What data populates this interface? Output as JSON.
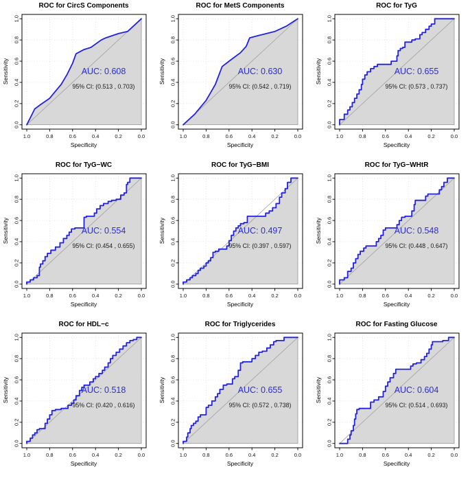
{
  "figure": {
    "type": "roc-curve-grid",
    "rows": 3,
    "cols": 3
  },
  "theme": {
    "curve_color": "#2222dd",
    "auc_text_color": "#2a2ae0",
    "ci_text_color": "#1a1a1a",
    "fill_color": "#d8d8d8",
    "fill_edge_color": "#8c8c8c",
    "diagonal_color": "#a6a6a6",
    "grid_color": "#e6d8d8",
    "box_color": "#000000",
    "text_color": "#111111",
    "background": "#ffffff"
  },
  "axes": {
    "xlabel": "Specificity",
    "ylabel": "Sensitivity",
    "x_ticks": [
      "1.0",
      "0.8",
      "0.6",
      "0.4",
      "0.2",
      "0.0"
    ],
    "y_ticks": [
      "0.0",
      "0.2",
      "0.4",
      "0.6",
      "0.8",
      "1.0"
    ],
    "x_reversed": true,
    "xlim": [
      1.0,
      0.0
    ],
    "ylim": [
      0.0,
      1.0
    ],
    "grid": "dotted"
  },
  "chart_data": [
    {
      "type": "line",
      "curve_style": "line",
      "title": "ROC for CircS Components",
      "auc": 0.608,
      "auc_label": "AUC: 0.608",
      "ci": [
        0.513,
        0.703
      ],
      "ci_label": "95% CI: (0.513 , 0.703)",
      "xlabel": "Specificity",
      "ylabel": "Sensitivity",
      "point_format": "[specificity, sensitivity]",
      "points": [
        [
          1.0,
          0.0
        ],
        [
          0.93,
          0.15
        ],
        [
          0.88,
          0.19
        ],
        [
          0.8,
          0.25
        ],
        [
          0.77,
          0.29
        ],
        [
          0.7,
          0.38
        ],
        [
          0.65,
          0.47
        ],
        [
          0.6,
          0.58
        ],
        [
          0.57,
          0.67
        ],
        [
          0.5,
          0.71
        ],
        [
          0.44,
          0.73
        ],
        [
          0.35,
          0.8
        ],
        [
          0.31,
          0.82
        ],
        [
          0.2,
          0.86
        ],
        [
          0.12,
          0.88
        ],
        [
          0.0,
          1.0
        ]
      ]
    },
    {
      "type": "line",
      "curve_style": "line",
      "title": "ROC for MetS Components",
      "auc": 0.63,
      "auc_label": "AUC: 0.630",
      "ci": [
        0.542,
        0.719
      ],
      "ci_label": "95% CI: (0.542 , 0.719)",
      "xlabel": "Specificity",
      "ylabel": "Sensitivity",
      "point_format": "[specificity, sensitivity]",
      "points": [
        [
          1.0,
          0.0
        ],
        [
          0.9,
          0.1
        ],
        [
          0.8,
          0.23
        ],
        [
          0.72,
          0.38
        ],
        [
          0.66,
          0.55
        ],
        [
          0.6,
          0.6
        ],
        [
          0.5,
          0.68
        ],
        [
          0.45,
          0.74
        ],
        [
          0.42,
          0.82
        ],
        [
          0.35,
          0.84
        ],
        [
          0.2,
          0.88
        ],
        [
          0.1,
          0.93
        ],
        [
          0.0,
          1.0
        ]
      ]
    },
    {
      "type": "line",
      "curve_style": "step",
      "title": "ROC for TyG",
      "auc": 0.655,
      "auc_label": "AUC: 0.655",
      "ci": [
        0.573,
        0.737
      ],
      "ci_label": "95% CI: (0.573 , 0.737)",
      "xlabel": "Specificity",
      "ylabel": "Sensitivity",
      "point_format": "[specificity, sensitivity]",
      "points": [
        [
          1.0,
          0.0
        ],
        [
          0.96,
          0.05
        ],
        [
          0.93,
          0.1
        ],
        [
          0.91,
          0.14
        ],
        [
          0.89,
          0.17
        ],
        [
          0.87,
          0.21
        ],
        [
          0.85,
          0.25
        ],
        [
          0.83,
          0.29
        ],
        [
          0.81,
          0.33
        ],
        [
          0.8,
          0.38
        ],
        [
          0.78,
          0.43
        ],
        [
          0.76,
          0.47
        ],
        [
          0.73,
          0.5
        ],
        [
          0.7,
          0.53
        ],
        [
          0.67,
          0.55
        ],
        [
          0.63,
          0.57
        ],
        [
          0.55,
          0.57
        ],
        [
          0.53,
          0.6
        ],
        [
          0.5,
          0.6
        ],
        [
          0.49,
          0.65
        ],
        [
          0.47,
          0.7
        ],
        [
          0.45,
          0.72
        ],
        [
          0.43,
          0.73
        ],
        [
          0.42,
          0.78
        ],
        [
          0.37,
          0.78
        ],
        [
          0.34,
          0.8
        ],
        [
          0.3,
          0.81
        ],
        [
          0.28,
          0.85
        ],
        [
          0.25,
          0.87
        ],
        [
          0.22,
          0.9
        ],
        [
          0.2,
          0.93
        ],
        [
          0.17,
          0.95
        ],
        [
          0.15,
          1.0
        ],
        [
          0.0,
          1.0
        ]
      ]
    },
    {
      "type": "line",
      "curve_style": "step",
      "title": "ROC for TyG−WC",
      "auc": 0.554,
      "auc_label": "AUC: 0.554",
      "ci": [
        0.454,
        0.655
      ],
      "ci_label": "95% CI: (0.454 , 0.655)",
      "xlabel": "Specificity",
      "ylabel": "Sensitivity",
      "point_format": "[specificity, sensitivity]",
      "points": [
        [
          1.0,
          0.0
        ],
        [
          0.97,
          0.02
        ],
        [
          0.94,
          0.04
        ],
        [
          0.91,
          0.06
        ],
        [
          0.89,
          0.08
        ],
        [
          0.88,
          0.16
        ],
        [
          0.86,
          0.19
        ],
        [
          0.84,
          0.22
        ],
        [
          0.82,
          0.26
        ],
        [
          0.79,
          0.29
        ],
        [
          0.75,
          0.32
        ],
        [
          0.71,
          0.35
        ],
        [
          0.68,
          0.39
        ],
        [
          0.65,
          0.43
        ],
        [
          0.63,
          0.46
        ],
        [
          0.61,
          0.49
        ],
        [
          0.58,
          0.52
        ],
        [
          0.56,
          0.53
        ],
        [
          0.5,
          0.53
        ],
        [
          0.48,
          0.63
        ],
        [
          0.41,
          0.64
        ],
        [
          0.39,
          0.67
        ],
        [
          0.36,
          0.71
        ],
        [
          0.33,
          0.74
        ],
        [
          0.29,
          0.76
        ],
        [
          0.26,
          0.78
        ],
        [
          0.22,
          0.79
        ],
        [
          0.18,
          0.8
        ],
        [
          0.15,
          0.84
        ],
        [
          0.13,
          0.86
        ],
        [
          0.12,
          0.94
        ],
        [
          0.1,
          0.96
        ],
        [
          0.08,
          1.0
        ],
        [
          0.0,
          1.0
        ]
      ]
    },
    {
      "type": "line",
      "curve_style": "step",
      "title": "ROC for TyG−BMI",
      "auc": 0.497,
      "auc_label": "AUC: 0.497",
      "ci": [
        0.397,
        0.597
      ],
      "ci_label": "95% CI: (0.397 , 0.597)",
      "xlabel": "Specificity",
      "ylabel": "Sensitivity",
      "point_format": "[specificity, sensitivity]",
      "points": [
        [
          1.0,
          0.0
        ],
        [
          0.97,
          0.02
        ],
        [
          0.94,
          0.04
        ],
        [
          0.92,
          0.06
        ],
        [
          0.89,
          0.08
        ],
        [
          0.87,
          0.1
        ],
        [
          0.85,
          0.13
        ],
        [
          0.82,
          0.15
        ],
        [
          0.8,
          0.17
        ],
        [
          0.78,
          0.2
        ],
        [
          0.76,
          0.22
        ],
        [
          0.74,
          0.25
        ],
        [
          0.72,
          0.3
        ],
        [
          0.69,
          0.31
        ],
        [
          0.62,
          0.33
        ],
        [
          0.6,
          0.36
        ],
        [
          0.58,
          0.41
        ],
        [
          0.56,
          0.46
        ],
        [
          0.54,
          0.5
        ],
        [
          0.52,
          0.53
        ],
        [
          0.5,
          0.55
        ],
        [
          0.47,
          0.57
        ],
        [
          0.44,
          0.58
        ],
        [
          0.42,
          0.64
        ],
        [
          0.28,
          0.64
        ],
        [
          0.25,
          0.67
        ],
        [
          0.22,
          0.69
        ],
        [
          0.19,
          0.72
        ],
        [
          0.16,
          0.76
        ],
        [
          0.14,
          0.82
        ],
        [
          0.11,
          0.86
        ],
        [
          0.09,
          0.9
        ],
        [
          0.06,
          0.96
        ],
        [
          0.05,
          1.0
        ],
        [
          0.0,
          1.0
        ]
      ]
    },
    {
      "type": "line",
      "curve_style": "step",
      "title": "ROC for TyG−WHtR",
      "auc": 0.548,
      "auc_label": "AUC: 0.548",
      "ci": [
        0.448,
        0.647
      ],
      "ci_label": "95% CI: (0.448 , 0.647)",
      "xlabel": "Specificity",
      "ylabel": "Sensitivity",
      "point_format": "[specificity, sensitivity]",
      "points": [
        [
          1.0,
          0.0
        ],
        [
          0.96,
          0.04
        ],
        [
          0.93,
          0.06
        ],
        [
          0.9,
          0.12
        ],
        [
          0.88,
          0.15
        ],
        [
          0.86,
          0.2
        ],
        [
          0.84,
          0.24
        ],
        [
          0.82,
          0.28
        ],
        [
          0.79,
          0.31
        ],
        [
          0.77,
          0.34
        ],
        [
          0.75,
          0.36
        ],
        [
          0.68,
          0.36
        ],
        [
          0.66,
          0.4
        ],
        [
          0.64,
          0.43
        ],
        [
          0.62,
          0.46
        ],
        [
          0.6,
          0.51
        ],
        [
          0.57,
          0.53
        ],
        [
          0.5,
          0.53
        ],
        [
          0.48,
          0.56
        ],
        [
          0.46,
          0.6
        ],
        [
          0.43,
          0.63
        ],
        [
          0.37,
          0.64
        ],
        [
          0.35,
          0.69
        ],
        [
          0.34,
          0.75
        ],
        [
          0.32,
          0.79
        ],
        [
          0.25,
          0.79
        ],
        [
          0.23,
          0.83
        ],
        [
          0.2,
          0.85
        ],
        [
          0.13,
          0.85
        ],
        [
          0.11,
          0.89
        ],
        [
          0.09,
          0.92
        ],
        [
          0.06,
          0.96
        ],
        [
          0.03,
          1.0
        ],
        [
          0.0,
          1.0
        ]
      ]
    },
    {
      "type": "line",
      "curve_style": "step",
      "title": "ROC for HDL−c",
      "auc": 0.518,
      "auc_label": "AUC: 0.518",
      "ci": [
        0.42,
        0.616
      ],
      "ci_label": "95% CI: (0.420 , 0.616)",
      "xlabel": "Specificity",
      "ylabel": "Sensitivity",
      "point_format": "[specificity, sensitivity]",
      "points": [
        [
          1.0,
          0.0
        ],
        [
          0.97,
          0.02
        ],
        [
          0.95,
          0.05
        ],
        [
          0.93,
          0.08
        ],
        [
          0.91,
          0.1
        ],
        [
          0.89,
          0.13
        ],
        [
          0.84,
          0.14
        ],
        [
          0.82,
          0.19
        ],
        [
          0.8,
          0.23
        ],
        [
          0.78,
          0.27
        ],
        [
          0.75,
          0.31
        ],
        [
          0.7,
          0.32
        ],
        [
          0.64,
          0.33
        ],
        [
          0.61,
          0.36
        ],
        [
          0.59,
          0.38
        ],
        [
          0.57,
          0.41
        ],
        [
          0.54,
          0.45
        ],
        [
          0.52,
          0.5
        ],
        [
          0.5,
          0.53
        ],
        [
          0.45,
          0.55
        ],
        [
          0.42,
          0.58
        ],
        [
          0.4,
          0.61
        ],
        [
          0.37,
          0.63
        ],
        [
          0.34,
          0.66
        ],
        [
          0.32,
          0.69
        ],
        [
          0.29,
          0.72
        ],
        [
          0.27,
          0.76
        ],
        [
          0.25,
          0.8
        ],
        [
          0.22,
          0.83
        ],
        [
          0.19,
          0.86
        ],
        [
          0.16,
          0.89
        ],
        [
          0.13,
          0.92
        ],
        [
          0.1,
          0.95
        ],
        [
          0.07,
          0.97
        ],
        [
          0.04,
          0.98
        ],
        [
          0.0,
          1.0
        ]
      ]
    },
    {
      "type": "line",
      "curve_style": "step",
      "title": "ROC for Triglycerides",
      "auc": 0.655,
      "auc_label": "AUC: 0.655",
      "ci": [
        0.572,
        0.738
      ],
      "ci_label": "95% CI: (0.572 , 0.738)",
      "xlabel": "Specificity",
      "ylabel": "Sensitivity",
      "point_format": "[specificity, sensitivity]",
      "points": [
        [
          1.0,
          0.0
        ],
        [
          0.97,
          0.02
        ],
        [
          0.96,
          0.06
        ],
        [
          0.94,
          0.1
        ],
        [
          0.93,
          0.14
        ],
        [
          0.91,
          0.17
        ],
        [
          0.89,
          0.19
        ],
        [
          0.87,
          0.21
        ],
        [
          0.85,
          0.25
        ],
        [
          0.8,
          0.27
        ],
        [
          0.78,
          0.34
        ],
        [
          0.75,
          0.36
        ],
        [
          0.72,
          0.4
        ],
        [
          0.7,
          0.44
        ],
        [
          0.68,
          0.47
        ],
        [
          0.65,
          0.51
        ],
        [
          0.62,
          0.55
        ],
        [
          0.57,
          0.56
        ],
        [
          0.55,
          0.61
        ],
        [
          0.52,
          0.63
        ],
        [
          0.5,
          0.69
        ],
        [
          0.48,
          0.76
        ],
        [
          0.4,
          0.77
        ],
        [
          0.37,
          0.8
        ],
        [
          0.34,
          0.83
        ],
        [
          0.31,
          0.86
        ],
        [
          0.27,
          0.87
        ],
        [
          0.24,
          0.9
        ],
        [
          0.21,
          0.93
        ],
        [
          0.19,
          0.96
        ],
        [
          0.12,
          0.97
        ],
        [
          0.1,
          1.0
        ],
        [
          0.0,
          1.0
        ]
      ]
    },
    {
      "type": "line",
      "curve_style": "step",
      "title": "ROC for Fasting Glucose",
      "auc": 0.604,
      "auc_label": "AUC: 0.604",
      "ci": [
        0.514,
        0.693
      ],
      "ci_label": "95% CI: (0.514 , 0.693)",
      "xlabel": "Specificity",
      "ylabel": "Sensitivity",
      "point_format": "[specificity, sensitivity]",
      "points": [
        [
          1.0,
          0.0
        ],
        [
          0.93,
          0.0
        ],
        [
          0.91,
          0.04
        ],
        [
          0.9,
          0.08
        ],
        [
          0.88,
          0.12
        ],
        [
          0.87,
          0.17
        ],
        [
          0.86,
          0.23
        ],
        [
          0.85,
          0.28
        ],
        [
          0.83,
          0.32
        ],
        [
          0.81,
          0.33
        ],
        [
          0.73,
          0.33
        ],
        [
          0.7,
          0.39
        ],
        [
          0.66,
          0.41
        ],
        [
          0.62,
          0.44
        ],
        [
          0.6,
          0.49
        ],
        [
          0.58,
          0.54
        ],
        [
          0.56,
          0.58
        ],
        [
          0.53,
          0.62
        ],
        [
          0.51,
          0.66
        ],
        [
          0.49,
          0.7
        ],
        [
          0.38,
          0.7
        ],
        [
          0.36,
          0.73
        ],
        [
          0.33,
          0.75
        ],
        [
          0.29,
          0.76
        ],
        [
          0.26,
          0.79
        ],
        [
          0.24,
          0.82
        ],
        [
          0.22,
          0.85
        ],
        [
          0.2,
          0.89
        ],
        [
          0.19,
          0.93
        ],
        [
          0.18,
          0.96
        ],
        [
          0.1,
          0.96
        ],
        [
          0.05,
          0.97
        ],
        [
          0.03,
          1.0
        ],
        [
          0.0,
          1.0
        ]
      ]
    }
  ]
}
